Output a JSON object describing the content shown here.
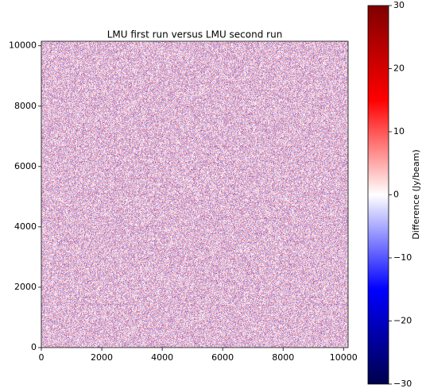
{
  "chart_data": {
    "type": "heatmap",
    "title": "LMU first run versus LMU second run",
    "xlim": [
      0,
      10150
    ],
    "ylim": [
      0,
      10150
    ],
    "xticks": [
      0,
      2000,
      4000,
      6000,
      8000,
      10000
    ],
    "yticks": [
      0,
      2000,
      4000,
      6000,
      8000,
      10000
    ],
    "colorbar": {
      "label": "Difference (Jy/beam)",
      "lim": [
        -30,
        30
      ],
      "ticks": [
        {
          "value": -30,
          "label": "−30"
        },
        {
          "value": -20,
          "label": "−20"
        },
        {
          "value": -10,
          "label": "−10"
        },
        0,
        10,
        20,
        30
      ],
      "colors": [
        "#00004c",
        "#0000ff",
        "#ffffff",
        "#ff0000",
        "#7f0000"
      ]
    }
  }
}
